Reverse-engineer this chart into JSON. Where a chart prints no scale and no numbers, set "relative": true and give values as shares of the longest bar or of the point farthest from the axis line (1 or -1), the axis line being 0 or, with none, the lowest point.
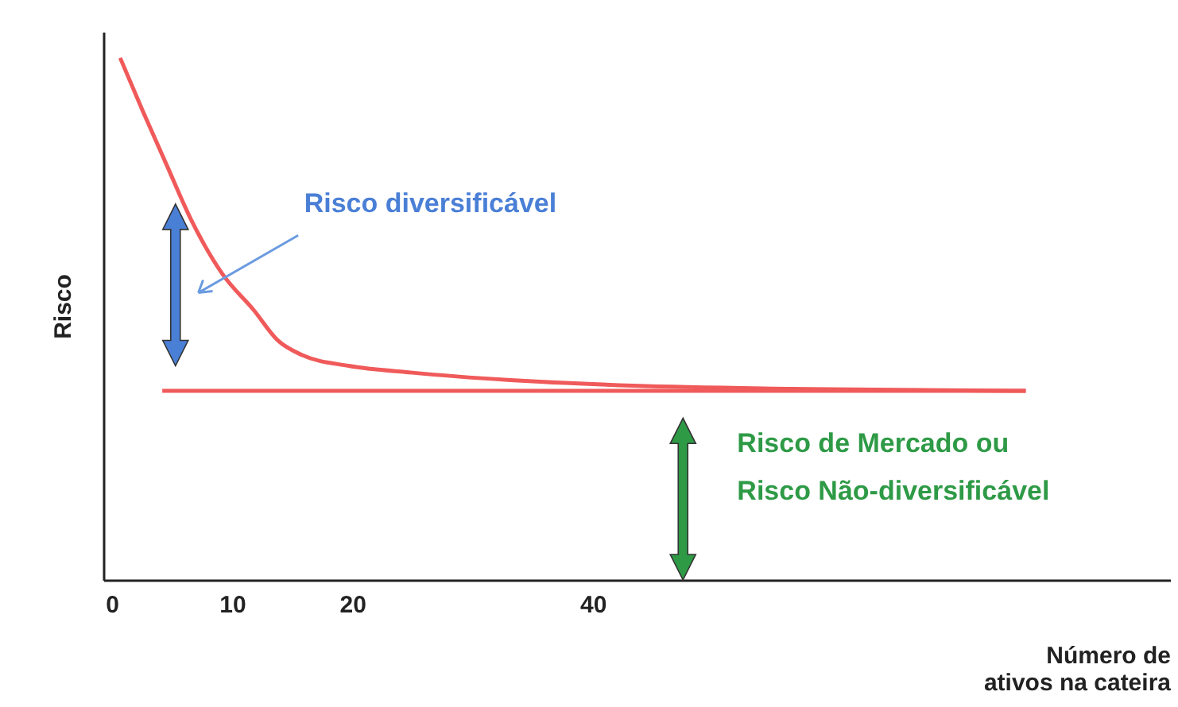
{
  "chart_data": {
    "type": "line",
    "relative": true,
    "xlabel": "Número de\nativos na cateira",
    "ylabel": "Risco",
    "xlim": [
      -0.7,
      88
    ],
    "xticks": [
      0,
      10,
      20,
      40
    ],
    "grid": false,
    "marker": "none",
    "line_style": "solid",
    "series": [
      {
        "color": "#f05a5a",
        "x": [
          0.7,
          2.6,
          4.6,
          6.6,
          9.2,
          11.8,
          13.8,
          15.8,
          19.7,
          25,
          32.9,
          43.4,
          56.6,
          76
        ],
        "values": [
          1,
          0.897,
          0.793,
          0.69,
          0.586,
          0.517,
          0.459,
          0.431,
          0.41,
          0.397,
          0.383,
          0.372,
          0.366,
          0.362
        ]
      },
      {
        "color": "#f05a5a",
        "x": [
          4.2,
          76
        ],
        "values": [
          0.362,
          0.362
        ]
      }
    ],
    "annotations": [
      "Risco diversificável",
      "Risco de Mercado ou\nRisco Não-diversificável"
    ]
  }
}
